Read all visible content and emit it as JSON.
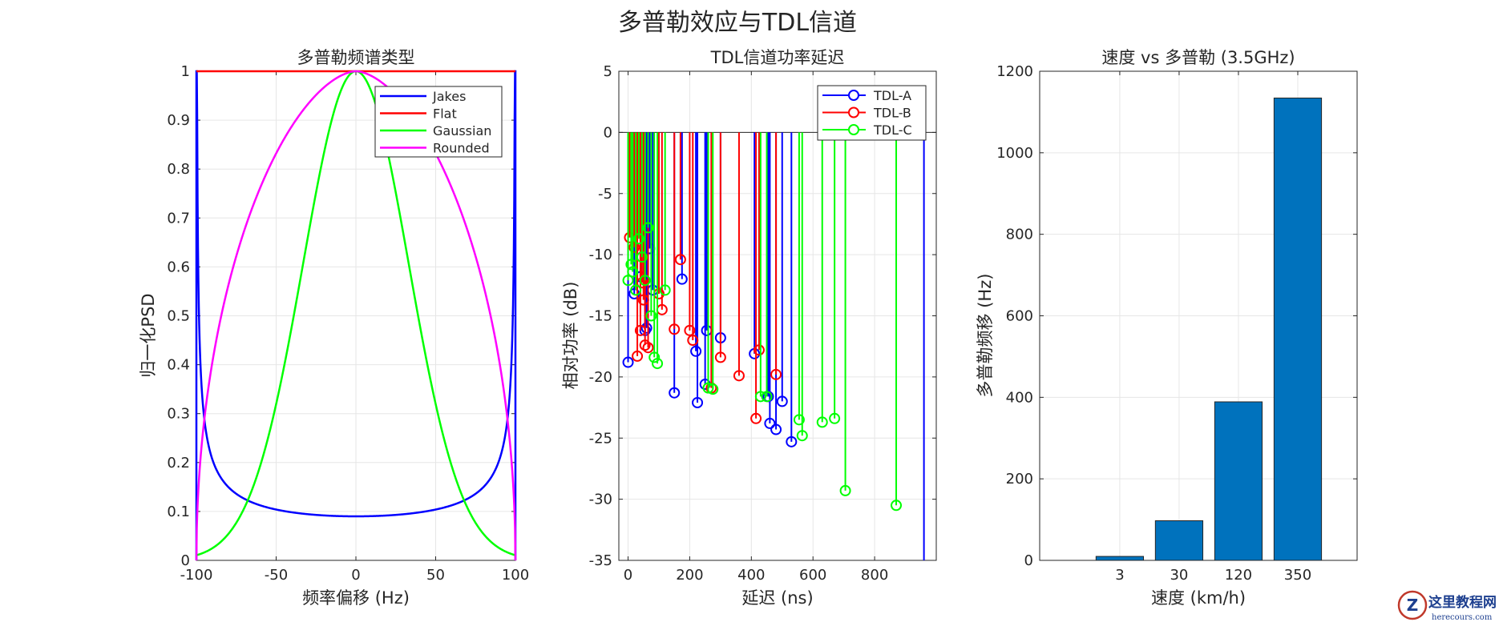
{
  "figure": {
    "title": "多普勒效应与TDL信道"
  },
  "chart_data": [
    {
      "type": "line",
      "title": "多普勒频谱类型",
      "xlabel": "频率偏移 (Hz)",
      "ylabel": "归一化PSD",
      "xlim": [
        -100,
        100
      ],
      "ylim": [
        0,
        1
      ],
      "xticks": [
        -100,
        -50,
        0,
        50,
        100
      ],
      "yticks": [
        0,
        0.1,
        0.2,
        0.3,
        0.4,
        0.5,
        0.6,
        0.7,
        0.8,
        0.9,
        1
      ],
      "legend_position": "top-right",
      "series": [
        {
          "name": "Jakes",
          "color": "#0000ff",
          "model": "jakes",
          "fd": 100,
          "min_value": 0.09
        },
        {
          "name": "Flat",
          "color": "#ff0000",
          "model": "flat",
          "value": 1
        },
        {
          "name": "Gaussian",
          "color": "#00ff00",
          "model": "gaussian",
          "sigma": 33.1
        },
        {
          "name": "Rounded",
          "color": "#ff00ff",
          "model": "rounded"
        }
      ]
    },
    {
      "type": "stem",
      "title": "TDL信道功率延迟",
      "xlabel": "延迟 (ns)",
      "ylabel": "相对功率 (dB)",
      "xlim": [
        -30,
        1000
      ],
      "ylim": [
        -35,
        5
      ],
      "xticks": [
        0,
        200,
        400,
        600,
        800
      ],
      "yticks": [
        -35,
        -30,
        -25,
        -20,
        -15,
        -10,
        -5,
        0,
        5
      ],
      "baseline": 0,
      "legend_position": "top-right",
      "series": [
        {
          "name": "TDL-A",
          "color": "#0000ff",
          "x": [
            0,
            20,
            40,
            55,
            60,
            70,
            80,
            150,
            175,
            220,
            225,
            250,
            255,
            300,
            410,
            455,
            460,
            480,
            500,
            530,
            960
          ],
          "y": [
            -18.8,
            -13.2,
            -11.8,
            -16.2,
            -16.0,
            -9.5,
            -12.9,
            -21.3,
            -12.0,
            -17.9,
            -22.1,
            -20.6,
            -16.2,
            -16.8,
            -18.1,
            -21.6,
            -23.8,
            -24.3,
            -22.0,
            -25.3,
            -35
          ]
        },
        {
          "name": "TDL-B",
          "color": "#ff0000",
          "x": [
            5,
            20,
            30,
            40,
            45,
            50,
            55,
            65,
            100,
            110,
            150,
            170,
            200,
            210,
            270,
            300,
            360,
            415,
            425,
            480
          ],
          "y": [
            -8.6,
            -9.4,
            -18.3,
            -16.2,
            -12.3,
            -13.7,
            -17.4,
            -17.6,
            -13.2,
            -14.5,
            -16.1,
            -10.4,
            -16.2,
            -17.0,
            -20.9,
            -18.4,
            -19.9,
            -23.4,
            -17.8,
            -19.8
          ]
        },
        {
          "name": "TDL-C",
          "color": "#00ff00",
          "x": [
            0,
            10,
            15,
            25,
            35,
            45,
            55,
            65,
            75,
            85,
            95,
            120,
            260,
            275,
            430,
            450,
            555,
            565,
            630,
            670,
            705,
            870
          ],
          "y": [
            -12.1,
            -10.8,
            -11.4,
            -12.9,
            -8.7,
            -10.2,
            -12.1,
            -7.8,
            -15.0,
            -18.4,
            -18.9,
            -12.9,
            -20.9,
            -21.0,
            -21.6,
            -21.6,
            -23.5,
            -24.8,
            -23.7,
            -23.4,
            -29.3,
            -30.5
          ]
        }
      ]
    },
    {
      "type": "bar",
      "title": "速度 vs 多普勒 (3.5GHz)",
      "xlabel": "速度 (km/h)",
      "ylabel": "多普勒频移 (Hz)",
      "categories": [
        "3",
        "30",
        "120",
        "350"
      ],
      "values": [
        9.7,
        97.2,
        388.9,
        1134.3
      ],
      "ylim": [
        0,
        1200
      ],
      "yticks": [
        0,
        200,
        400,
        600,
        800,
        1000,
        1200
      ],
      "color": "#0072bd"
    }
  ],
  "watermark": {
    "text": "这里教程网",
    "subtext": "herecours.com"
  }
}
